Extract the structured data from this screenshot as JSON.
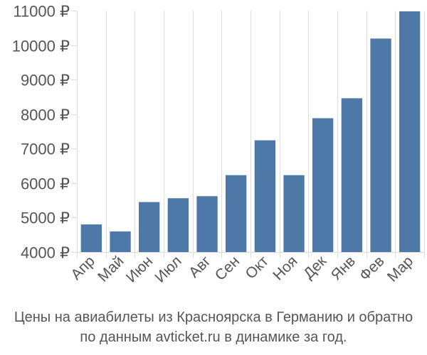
{
  "chart_data": {
    "type": "bar",
    "categories": [
      "Апр",
      "Май",
      "Июн",
      "Июл",
      "Авг",
      "Сен",
      "Окт",
      "Ноя",
      "Дек",
      "Янв",
      "Фев",
      "Мар"
    ],
    "values": [
      4800,
      4600,
      5450,
      5560,
      5620,
      6230,
      7240,
      6230,
      7880,
      8460,
      10190,
      10980
    ],
    "ylim": [
      4000,
      11000
    ],
    "yticks": [
      4000,
      5000,
      6000,
      7000,
      8000,
      9000,
      10000,
      11000
    ],
    "ytick_labels": [
      "4000 ₽",
      "5000 ₽",
      "6000 ₽",
      "7000 ₽",
      "8000 ₽",
      "9000 ₽",
      "10000 ₽",
      "11000 ₽"
    ],
    "grid": "vertical",
    "bar_color": "#4d78a8"
  },
  "caption": {
    "line1": "Цены на авиабилеты из Красноярска в Германию и обратно",
    "line2": "по данным avticket.ru в динамике за год."
  }
}
